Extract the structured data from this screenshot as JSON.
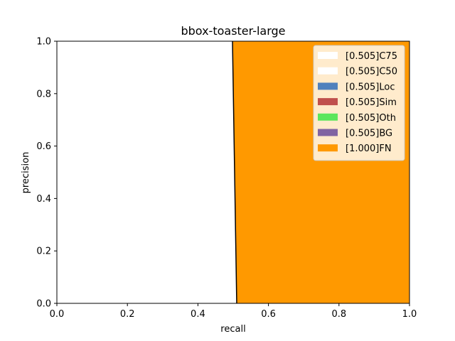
{
  "chart_data": {
    "type": "area",
    "title": "bbox-toaster-large",
    "xlabel": "recall",
    "ylabel": "precision",
    "xlim": [
      0.0,
      1.0
    ],
    "ylim": [
      0.0,
      1.0
    ],
    "x_ticks": [
      "0.0",
      "0.2",
      "0.4",
      "0.6",
      "0.8",
      "1.0"
    ],
    "y_ticks": [
      "0.0",
      "0.2",
      "0.4",
      "0.6",
      "0.8",
      "1.0"
    ],
    "legend_position": "top-right",
    "series": [
      {
        "name": "[0.505]C75",
        "color": "#ffffff",
        "recall_at_top": 0.0,
        "recall_at_bottom": 0.0
      },
      {
        "name": "[0.505]C50",
        "color": "#ffffff",
        "recall_at_top": 0.0,
        "recall_at_bottom": 0.0
      },
      {
        "name": "[0.505]Loc",
        "color": "#4f81bd",
        "recall_at_top": 0.0,
        "recall_at_bottom": 0.0
      },
      {
        "name": "[0.505]Sim",
        "color": "#c0504d",
        "recall_at_top": 0.0,
        "recall_at_bottom": 0.0
      },
      {
        "name": "[0.505]Oth",
        "color": "#5ce65c",
        "recall_at_top": 0.0,
        "recall_at_bottom": 0.0
      },
      {
        "name": "[0.505]BG",
        "color": "#8064a2",
        "recall_at_top": 0.0,
        "recall_at_bottom": 0.0
      },
      {
        "name": "[1.000]FN",
        "color": "#ff9900",
        "recall_at_top": 0.0,
        "recall_at_bottom": 0.0
      }
    ],
    "pr_boundary": {
      "recall_at_precision_1": 0.498,
      "recall_at_precision_0": 0.51
    }
  }
}
